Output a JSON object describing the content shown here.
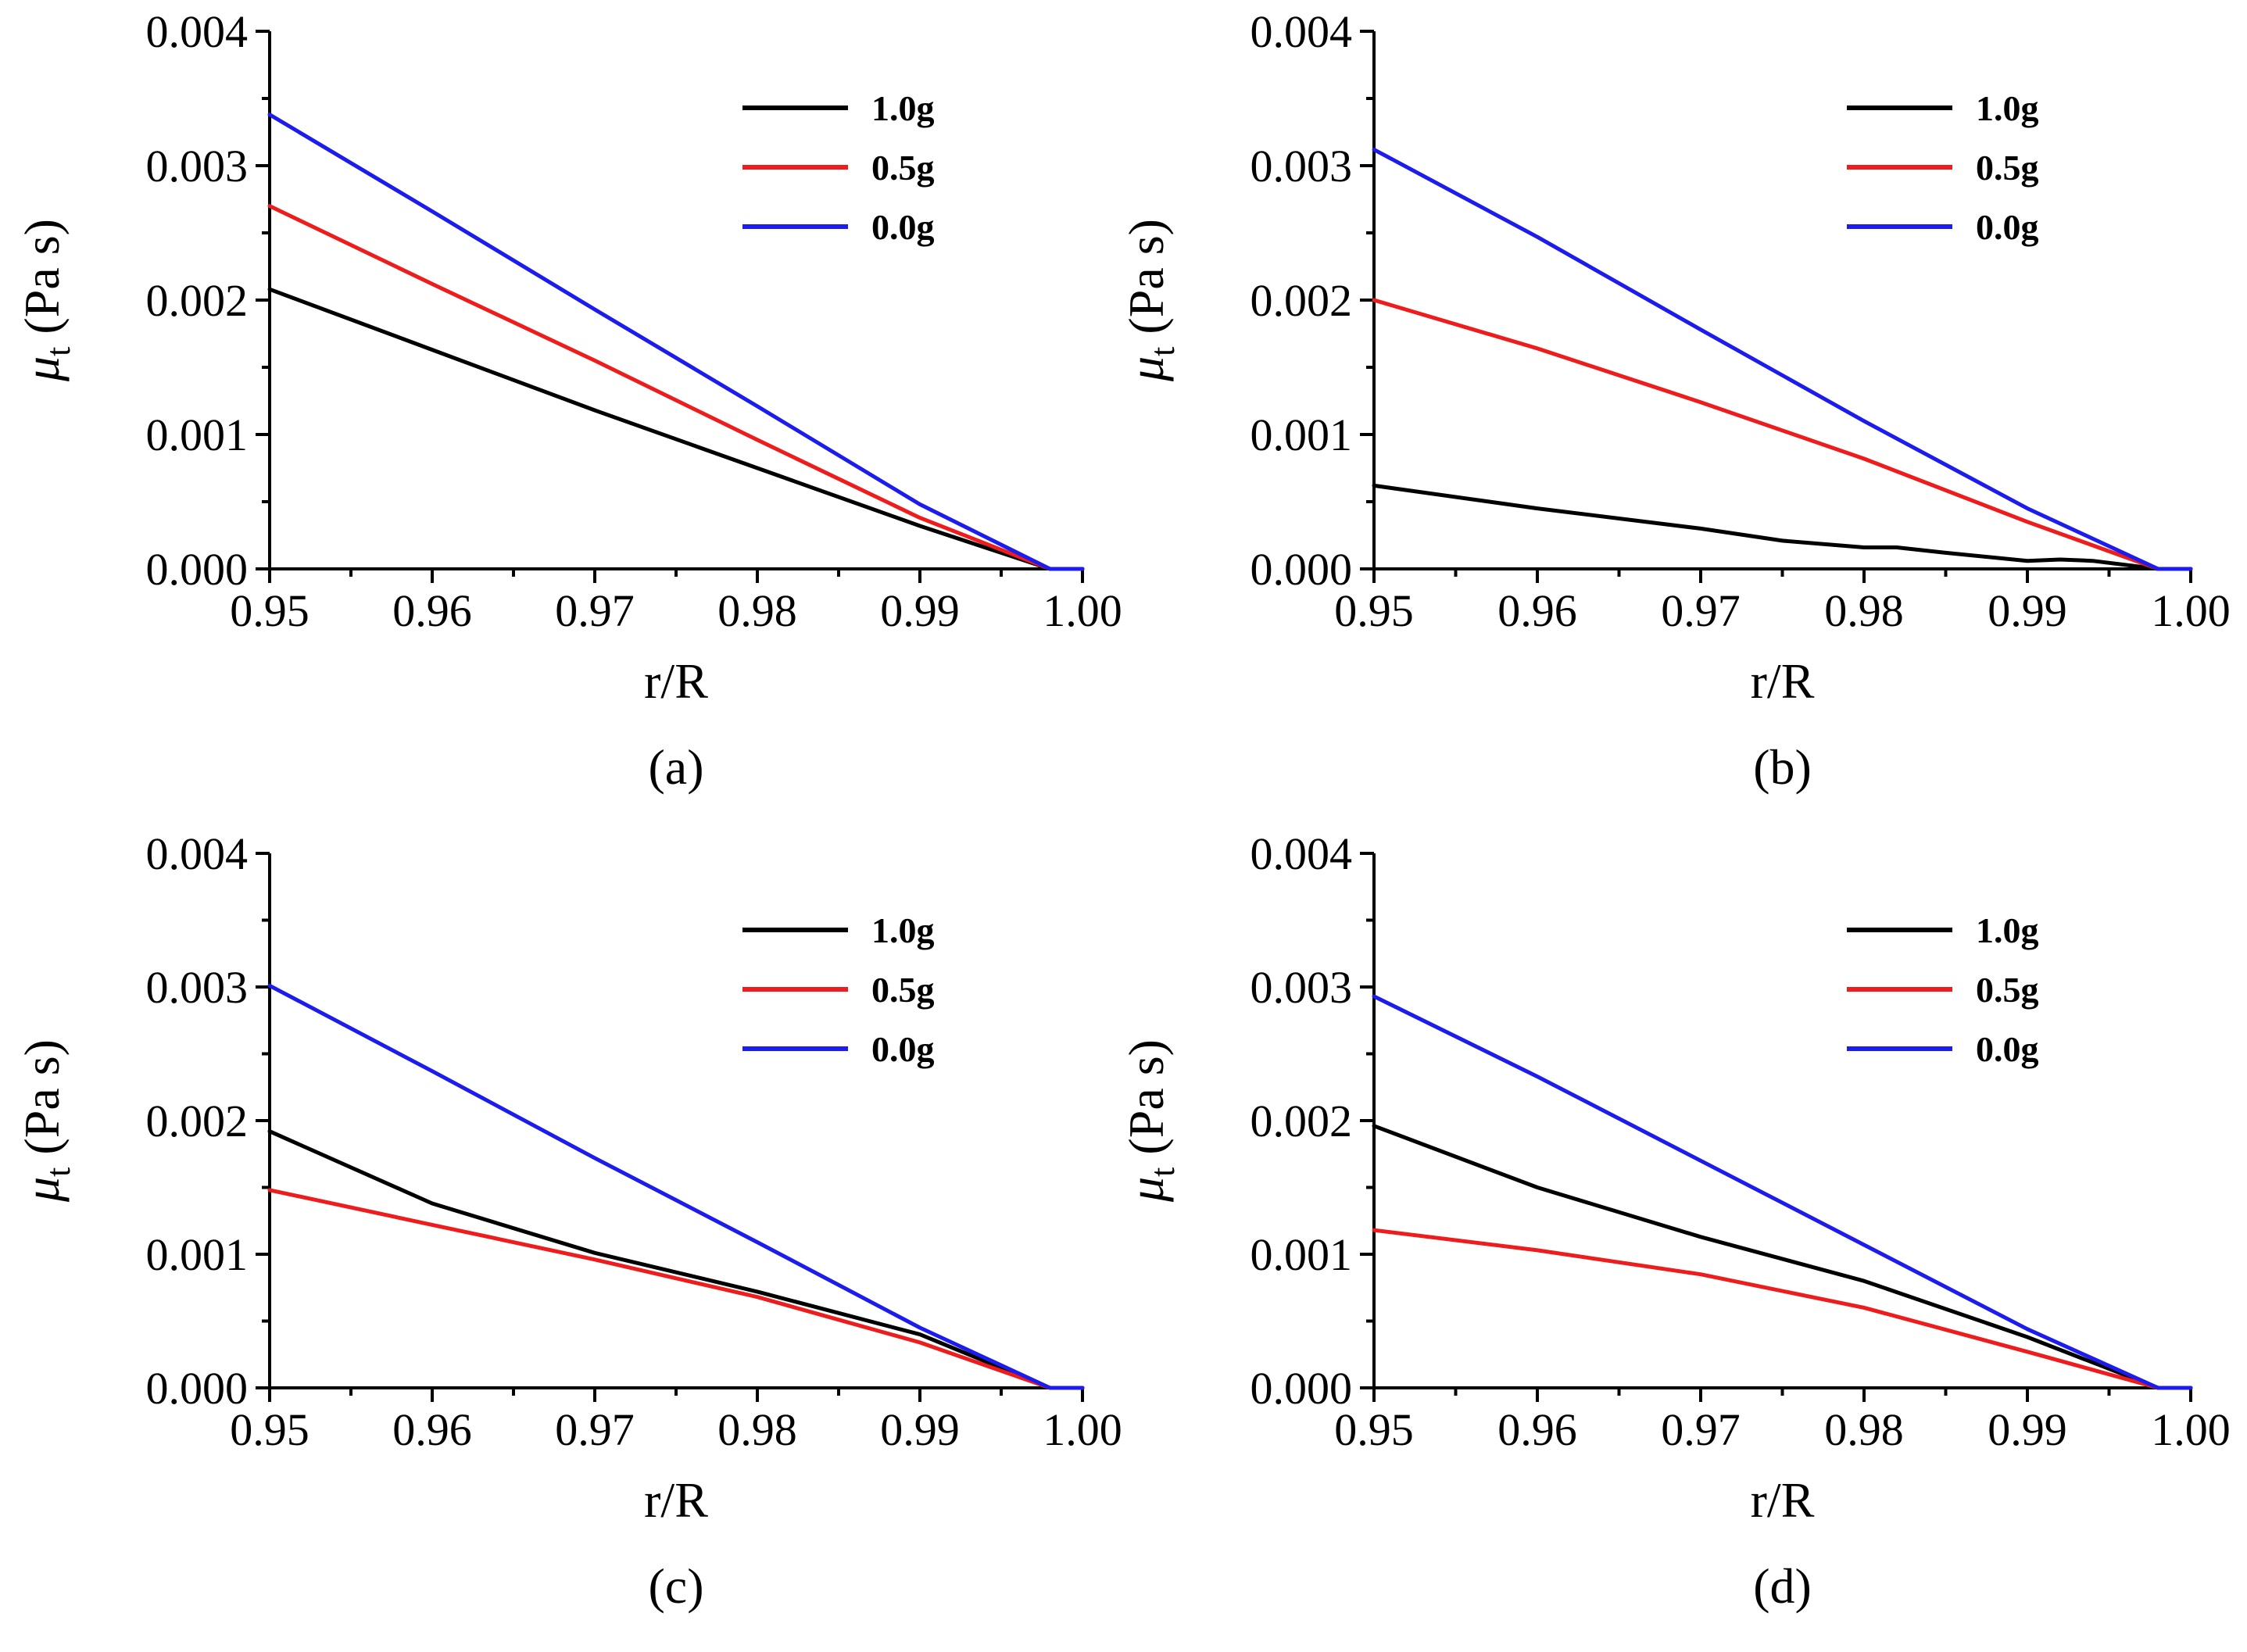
{
  "figure": {
    "panel_count": 4
  },
  "colors": {
    "1.0g": "#000000",
    "0.5g": "#ee1c1c",
    "0.0g": "#1c1cee",
    "axis": "#000000"
  },
  "chart_data": [
    {
      "type": "line",
      "panel_label": "(a)",
      "xlabel": "r/R",
      "ylabel_symbol": "μ",
      "ylabel_subscript": "t",
      "ylabel_unit": "(Pa s)",
      "xlim": [
        0.95,
        1.0
      ],
      "ylim": [
        0.0,
        0.004
      ],
      "xticks": [
        0.95,
        0.96,
        0.97,
        0.98,
        0.99,
        1.0
      ],
      "xtick_labels": [
        "0.95",
        "0.96",
        "0.97",
        "0.98",
        "0.99",
        "1.00"
      ],
      "yticks": [
        0.0,
        0.001,
        0.002,
        0.003,
        0.004
      ],
      "ytick_labels": [
        "0.000",
        "0.001",
        "0.002",
        "0.003",
        "0.004"
      ],
      "legend_position": "top-right",
      "series": [
        {
          "name": "1.0g",
          "color": "#000000",
          "x": [
            0.95,
            0.96,
            0.97,
            0.98,
            0.99,
            0.998,
            1.0
          ],
          "y": [
            0.00208,
            0.00163,
            0.00118,
            0.00075,
            0.00032,
            0.0,
            0.0
          ]
        },
        {
          "name": "0.5g",
          "color": "#ee1c1c",
          "x": [
            0.95,
            0.96,
            0.97,
            0.98,
            0.99,
            0.998,
            1.0
          ],
          "y": [
            0.0027,
            0.00212,
            0.00155,
            0.00096,
            0.00038,
            0.0,
            0.0
          ]
        },
        {
          "name": "0.0g",
          "color": "#1c1cee",
          "x": [
            0.95,
            0.96,
            0.97,
            0.98,
            0.99,
            0.998,
            1.0
          ],
          "y": [
            0.00338,
            0.00266,
            0.00193,
            0.00121,
            0.00048,
            0.0,
            0.0
          ]
        }
      ]
    },
    {
      "type": "line",
      "panel_label": "(b)",
      "xlabel": "r/R",
      "ylabel_symbol": "μ",
      "ylabel_subscript": "t",
      "ylabel_unit": "(Pa s)",
      "xlim": [
        0.95,
        1.0
      ],
      "ylim": [
        0.0,
        0.004
      ],
      "xticks": [
        0.95,
        0.96,
        0.97,
        0.98,
        0.99,
        1.0
      ],
      "xtick_labels": [
        "0.95",
        "0.96",
        "0.97",
        "0.98",
        "0.99",
        "1.00"
      ],
      "yticks": [
        0.0,
        0.001,
        0.002,
        0.003,
        0.004
      ],
      "ytick_labels": [
        "0.000",
        "0.001",
        "0.002",
        "0.003",
        "0.004"
      ],
      "legend_position": "top-right",
      "series": [
        {
          "name": "1.0g",
          "color": "#000000",
          "x": [
            0.95,
            0.96,
            0.97,
            0.975,
            0.98,
            0.982,
            0.985,
            0.99,
            0.992,
            0.994,
            0.998,
            1.0
          ],
          "y": [
            0.00062,
            0.00045,
            0.0003,
            0.00021,
            0.00016,
            0.00016,
            0.00012,
            6e-05,
            7e-05,
            6e-05,
            0.0,
            0.0
          ]
        },
        {
          "name": "0.5g",
          "color": "#ee1c1c",
          "x": [
            0.95,
            0.96,
            0.97,
            0.98,
            0.99,
            0.998,
            1.0
          ],
          "y": [
            0.002,
            0.00164,
            0.00124,
            0.00082,
            0.00035,
            0.0,
            0.0
          ]
        },
        {
          "name": "0.0g",
          "color": "#1c1cee",
          "x": [
            0.95,
            0.96,
            0.97,
            0.98,
            0.99,
            0.998,
            1.0
          ],
          "y": [
            0.00312,
            0.00247,
            0.00178,
            0.0011,
            0.00045,
            0.0,
            0.0
          ]
        }
      ]
    },
    {
      "type": "line",
      "panel_label": "(c)",
      "xlabel": "r/R",
      "ylabel_symbol": "μ",
      "ylabel_subscript": "t",
      "ylabel_unit": "(Pa s)",
      "xlim": [
        0.95,
        1.0
      ],
      "ylim": [
        0.0,
        0.004
      ],
      "xticks": [
        0.95,
        0.96,
        0.97,
        0.98,
        0.99,
        1.0
      ],
      "xtick_labels": [
        "0.95",
        "0.96",
        "0.97",
        "0.98",
        "0.99",
        "1.00"
      ],
      "yticks": [
        0.0,
        0.001,
        0.002,
        0.003,
        0.004
      ],
      "ytick_labels": [
        "0.000",
        "0.001",
        "0.002",
        "0.003",
        "0.004"
      ],
      "legend_position": "top-right",
      "series": [
        {
          "name": "1.0g",
          "color": "#000000",
          "x": [
            0.95,
            0.96,
            0.97,
            0.98,
            0.99,
            0.998,
            1.0
          ],
          "y": [
            0.00192,
            0.00138,
            0.00101,
            0.00072,
            0.0004,
            0.0,
            0.0
          ]
        },
        {
          "name": "0.5g",
          "color": "#ee1c1c",
          "x": [
            0.95,
            0.96,
            0.97,
            0.98,
            0.99,
            0.998,
            1.0
          ],
          "y": [
            0.00148,
            0.00122,
            0.00096,
            0.00068,
            0.00034,
            0.0,
            0.0
          ]
        },
        {
          "name": "0.0g",
          "color": "#1c1cee",
          "x": [
            0.95,
            0.96,
            0.97,
            0.98,
            0.99,
            0.998,
            1.0
          ],
          "y": [
            0.00301,
            0.00237,
            0.00172,
            0.00109,
            0.00045,
            0.0,
            0.0
          ]
        }
      ]
    },
    {
      "type": "line",
      "panel_label": "(d)",
      "xlabel": "r/R",
      "ylabel_symbol": "μ",
      "ylabel_subscript": "t",
      "ylabel_unit": "(Pa s)",
      "xlim": [
        0.95,
        1.0
      ],
      "ylim": [
        0.0,
        0.004
      ],
      "xticks": [
        0.95,
        0.96,
        0.97,
        0.98,
        0.99,
        1.0
      ],
      "xtick_labels": [
        "0.95",
        "0.96",
        "0.97",
        "0.98",
        "0.99",
        "1.00"
      ],
      "yticks": [
        0.0,
        0.001,
        0.002,
        0.003,
        0.004
      ],
      "ytick_labels": [
        "0.000",
        "0.001",
        "0.002",
        "0.003",
        "0.004"
      ],
      "legend_position": "top-right",
      "series": [
        {
          "name": "1.0g",
          "color": "#000000",
          "x": [
            0.95,
            0.96,
            0.97,
            0.98,
            0.99,
            0.998,
            1.0
          ],
          "y": [
            0.00196,
            0.0015,
            0.00113,
            0.0008,
            0.00038,
            0.0,
            0.0
          ]
        },
        {
          "name": "0.5g",
          "color": "#ee1c1c",
          "x": [
            0.95,
            0.96,
            0.97,
            0.98,
            0.99,
            0.998,
            1.0
          ],
          "y": [
            0.00118,
            0.00103,
            0.00085,
            0.0006,
            0.00027,
            0.0,
            0.0
          ]
        },
        {
          "name": "0.0g",
          "color": "#1c1cee",
          "x": [
            0.95,
            0.96,
            0.97,
            0.98,
            0.99,
            0.998,
            1.0
          ],
          "y": [
            0.00293,
            0.00233,
            0.0017,
            0.00107,
            0.00044,
            0.0,
            0.0
          ]
        }
      ]
    }
  ]
}
